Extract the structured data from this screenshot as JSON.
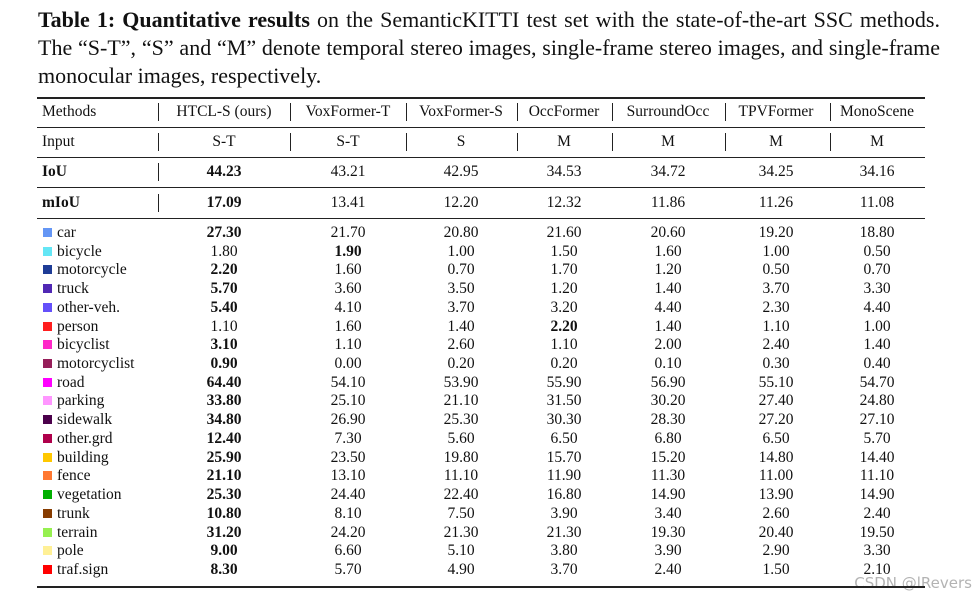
{
  "caption": {
    "title": "Table 1: Quantitative results",
    "text": "on the SemanticKITTI test set with the state-of-the-art SSC methods. The “S-T”, “S” and “M” denote temporal stereo images, single-frame stereo images, and single-frame monocular images, respectively."
  },
  "table": {
    "header": [
      "Methods",
      "HTCL-S (ours)",
      "VoxFormer-T",
      "VoxFormer-S",
      "OccFormer",
      "SurroundOcc",
      "TPVFormer",
      "MonoScene"
    ],
    "input": {
      "label": "Input",
      "values": [
        "S-T",
        "S-T",
        "S",
        "M",
        "M",
        "M",
        "M"
      ]
    },
    "summary": [
      {
        "label": "IoU",
        "values": [
          "44.23",
          "43.21",
          "42.95",
          "34.53",
          "34.72",
          "34.25",
          "34.16"
        ],
        "best": [
          0
        ]
      },
      {
        "label": "mIoU",
        "values": [
          "17.09",
          "13.41",
          "12.20",
          "12.32",
          "11.86",
          "11.26",
          "11.08"
        ],
        "best": [
          0
        ]
      }
    ],
    "classes": [
      {
        "label": "car",
        "color": "#6496f5",
        "values": [
          "27.30",
          "21.70",
          "20.80",
          "21.60",
          "20.60",
          "19.20",
          "18.80"
        ],
        "best": [
          0
        ]
      },
      {
        "label": "bicycle",
        "color": "#64e6f5",
        "values": [
          "1.80",
          "1.90",
          "1.00",
          "1.50",
          "1.60",
          "1.00",
          "0.50"
        ],
        "best": [
          1
        ]
      },
      {
        "label": "motorcycle",
        "color": "#1e3c96",
        "values": [
          "2.20",
          "1.60",
          "0.70",
          "1.70",
          "1.20",
          "0.50",
          "0.70"
        ],
        "best": [
          0
        ]
      },
      {
        "label": "truck",
        "color": "#5028b4",
        "values": [
          "5.70",
          "3.60",
          "3.50",
          "1.20",
          "1.40",
          "3.70",
          "3.30"
        ],
        "best": [
          0
        ]
      },
      {
        "label": "other-veh.",
        "color": "#6450fa",
        "values": [
          "5.40",
          "4.10",
          "3.70",
          "3.20",
          "4.40",
          "2.30",
          "4.40"
        ],
        "best": [
          0
        ]
      },
      {
        "label": "person",
        "color": "#ff1e1e",
        "values": [
          "1.10",
          "1.60",
          "1.40",
          "2.20",
          "1.40",
          "1.10",
          "1.00"
        ],
        "best": [
          3
        ]
      },
      {
        "label": "bicyclist",
        "color": "#ff28c8",
        "values": [
          "3.10",
          "1.10",
          "2.60",
          "1.10",
          "2.00",
          "2.40",
          "1.40"
        ],
        "best": [
          0
        ]
      },
      {
        "label": "motorcyclist",
        "color": "#961e5a",
        "values": [
          "0.90",
          "0.00",
          "0.20",
          "0.20",
          "0.10",
          "0.30",
          "0.40"
        ],
        "best": [
          0
        ]
      },
      {
        "label": "road",
        "color": "#ff00ff",
        "values": [
          "64.40",
          "54.10",
          "53.90",
          "55.90",
          "56.90",
          "55.10",
          "54.70"
        ],
        "best": [
          0
        ]
      },
      {
        "label": "parking",
        "color": "#ff96ff",
        "values": [
          "33.80",
          "25.10",
          "21.10",
          "31.50",
          "30.20",
          "27.40",
          "24.80"
        ],
        "best": [
          0
        ]
      },
      {
        "label": "sidewalk",
        "color": "#4b004b",
        "values": [
          "34.80",
          "26.90",
          "25.30",
          "30.30",
          "28.30",
          "27.20",
          "27.10"
        ],
        "best": [
          0
        ]
      },
      {
        "label": "other.grd",
        "color": "#af004b",
        "values": [
          "12.40",
          "7.30",
          "5.60",
          "6.50",
          "6.80",
          "6.50",
          "5.70"
        ],
        "best": [
          0
        ]
      },
      {
        "label": "building",
        "color": "#ffc800",
        "values": [
          "25.90",
          "23.50",
          "19.80",
          "15.70",
          "15.20",
          "14.80",
          "14.40"
        ],
        "best": [
          0
        ]
      },
      {
        "label": "fence",
        "color": "#ff7832",
        "values": [
          "21.10",
          "13.10",
          "11.10",
          "11.90",
          "11.30",
          "11.00",
          "11.10"
        ],
        "best": [
          0
        ]
      },
      {
        "label": "vegetation",
        "color": "#00af00",
        "values": [
          "25.30",
          "24.40",
          "22.40",
          "16.80",
          "14.90",
          "13.90",
          "14.90"
        ],
        "best": [
          0
        ]
      },
      {
        "label": "trunk",
        "color": "#873c00",
        "values": [
          "10.80",
          "8.10",
          "7.50",
          "3.90",
          "3.40",
          "2.60",
          "2.40"
        ],
        "best": [
          0
        ]
      },
      {
        "label": "terrain",
        "color": "#96f050",
        "values": [
          "31.20",
          "24.20",
          "21.30",
          "21.30",
          "19.30",
          "20.40",
          "19.50"
        ],
        "best": [
          0
        ]
      },
      {
        "label": "pole",
        "color": "#fff096",
        "values": [
          "9.00",
          "6.60",
          "5.10",
          "3.80",
          "3.90",
          "2.90",
          "3.30"
        ],
        "best": [
          0
        ]
      },
      {
        "label": "traf.sign",
        "color": "#ff0000",
        "values": [
          "8.30",
          "5.70",
          "4.90",
          "3.70",
          "2.40",
          "1.50",
          "2.10"
        ],
        "best": [
          0
        ]
      }
    ]
  },
  "watermark": "CSDN @lRevers"
}
